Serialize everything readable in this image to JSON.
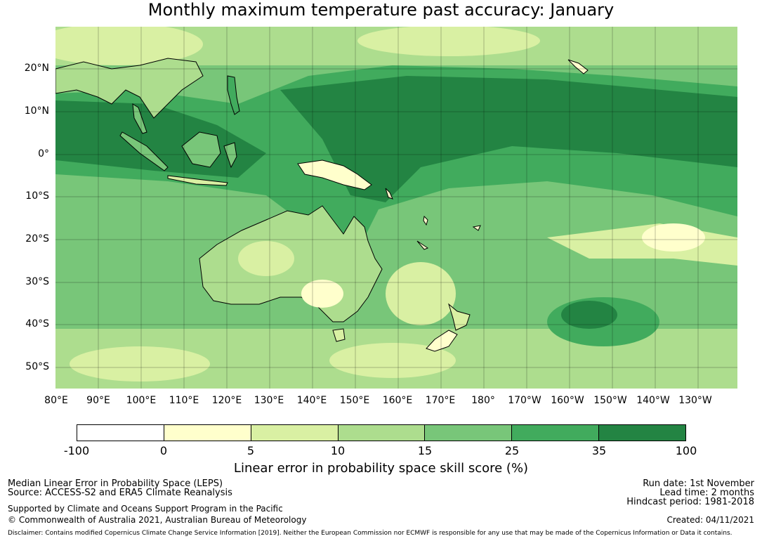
{
  "title": "Monthly maximum temperature past accuracy: January",
  "map": {
    "lat_labels": [
      "20°N",
      "10°N",
      "0°",
      "10°S",
      "20°S",
      "30°S",
      "40°S",
      "50°S"
    ],
    "lon_labels": [
      "80°E",
      "90°E",
      "100°E",
      "110°E",
      "120°E",
      "130°E",
      "140°E",
      "150°E",
      "160°E",
      "170°E",
      "180°",
      "170°W",
      "160°W",
      "150°W",
      "140°W",
      "130°W"
    ],
    "region": "Pacific / Australia / Maritime Continent",
    "extent": {
      "lon_min": 80,
      "lon_max": 240,
      "lat_min": -55,
      "lat_max": 30
    }
  },
  "colorbar": {
    "ticks": [
      "-100",
      "0",
      "5",
      "10",
      "15",
      "25",
      "35",
      "100"
    ],
    "colors": [
      "#ffffff",
      "#ffffcc",
      "#d9f0a3",
      "#addd8e",
      "#78c679",
      "#41ab5d",
      "#238443"
    ],
    "label": "Linear error in probability space skill score (%)"
  },
  "footer": {
    "method": "Median Linear Error in Probability Space (LEPS)",
    "source": "Source: ACCESS-S2 and ERA5 Climate Reanalysis",
    "support": "Supported by Climate and Oceans Support Program in the Pacific",
    "copyright": "© Commonwealth of Australia 2021, Australian Bureau of Meteorology",
    "run_date": "Run date: 1st November",
    "lead_time": "Lead time: 2 months",
    "hindcast": "Hindcast period: 1981-2018",
    "created": "Created: 04/11/2021",
    "disclaimer": "Disclaimer: Contains modified Copernicus Climate Change Service Information [2019]. Neither the European Commission nor ECMWF is responsible for any use that may be made of the Copernicus Information or Data it contains."
  }
}
